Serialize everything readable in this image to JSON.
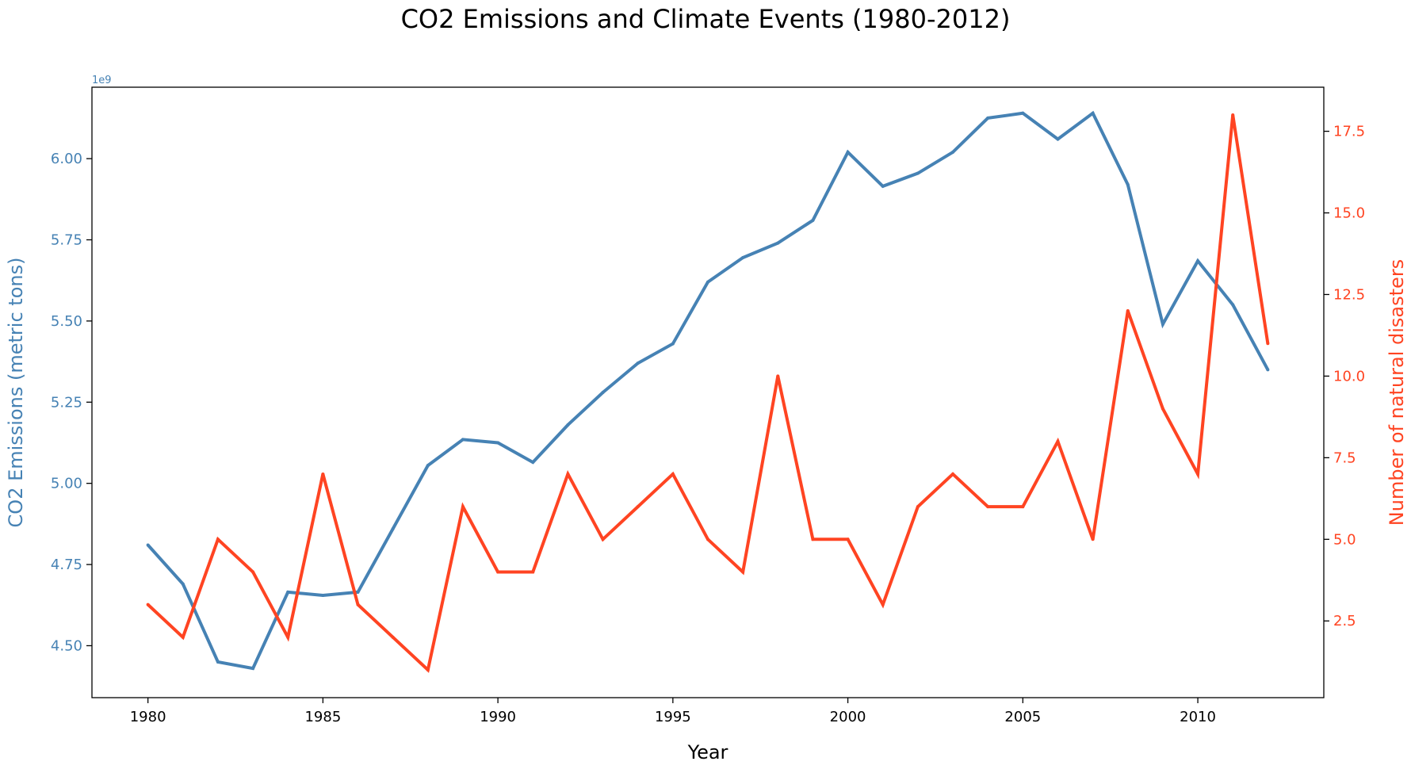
{
  "chart_data": {
    "type": "line",
    "title": "CO2 Emissions and Climate Events (1980-2012)",
    "xlabel": "Year",
    "ylabel_left": "CO2 Emissions (metric tons)",
    "ylabel_right": "Number of natural disasters",
    "left_offset_label": "1e9",
    "xlim": [
      1978.4,
      2013.6
    ],
    "ylim_left": [
      4.34,
      6.22
    ],
    "ylim_right": [
      0.15,
      18.85
    ],
    "x_ticks": [
      1980,
      1985,
      1990,
      1995,
      2000,
      2005,
      2010
    ],
    "y_ticks_left": [
      4.5,
      4.75,
      5.0,
      5.25,
      5.5,
      5.75,
      6.0
    ],
    "y_tick_labels_left": [
      "4.50",
      "4.75",
      "5.00",
      "5.25",
      "5.50",
      "5.75",
      "6.00"
    ],
    "y_ticks_right": [
      2.5,
      5.0,
      7.5,
      10.0,
      12.5,
      15.0,
      17.5
    ],
    "y_tick_labels_right": [
      "2.5",
      "5.0",
      "7.5",
      "10.0",
      "12.5",
      "15.0",
      "17.5"
    ],
    "x": [
      1980,
      1981,
      1982,
      1983,
      1984,
      1985,
      1986,
      1987,
      1988,
      1989,
      1990,
      1991,
      1992,
      1993,
      1994,
      1995,
      1996,
      1997,
      1998,
      1999,
      2000,
      2001,
      2002,
      2003,
      2004,
      2005,
      2006,
      2007,
      2008,
      2009,
      2010,
      2011,
      2012
    ],
    "series": [
      {
        "name": "CO2 Emissions (metric tons)",
        "axis": "left",
        "color": "#4682b4",
        "values": [
          4.81,
          4.69,
          4.45,
          4.43,
          4.665,
          4.655,
          4.665,
          4.86,
          5.055,
          5.135,
          5.125,
          5.065,
          5.18,
          5.28,
          5.37,
          5.43,
          5.62,
          5.695,
          5.74,
          5.81,
          6.02,
          5.915,
          5.955,
          6.02,
          6.125,
          6.14,
          6.06,
          6.14,
          5.92,
          5.49,
          5.685,
          5.55,
          5.35
        ]
      },
      {
        "name": "Number of natural disasters",
        "axis": "right",
        "color": "#ff4422",
        "values": [
          3,
          2,
          5,
          4,
          2,
          7,
          3,
          2,
          1,
          6,
          4,
          4,
          7,
          5,
          6,
          7,
          5,
          4,
          10,
          5,
          5,
          3,
          6,
          7,
          6,
          6,
          8,
          5,
          12,
          9,
          7,
          18,
          11
        ]
      }
    ]
  }
}
